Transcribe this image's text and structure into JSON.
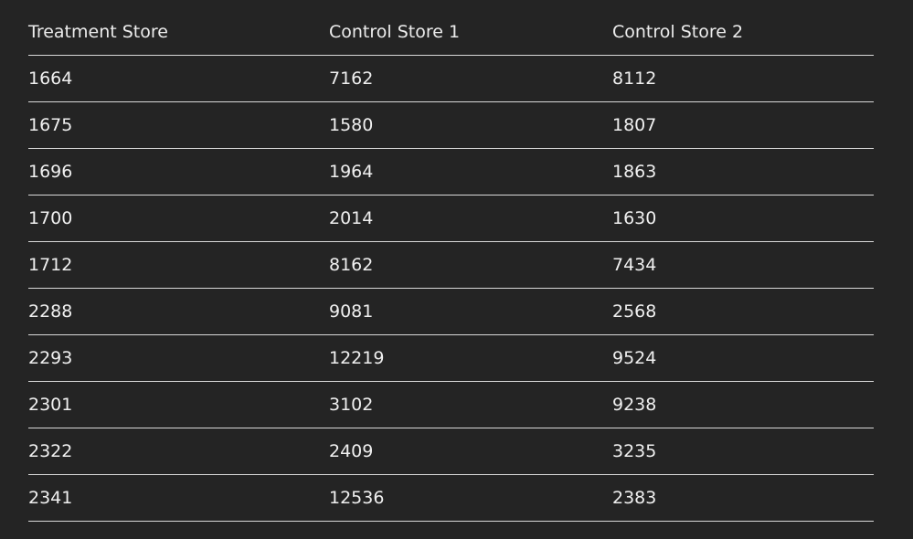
{
  "table": {
    "headers": [
      "Treatment Store",
      "Control Store 1",
      "Control Store 2"
    ],
    "rows": [
      [
        "1664",
        "7162",
        "8112"
      ],
      [
        "1675",
        "1580",
        "1807"
      ],
      [
        "1696",
        "1964",
        "1863"
      ],
      [
        "1700",
        "2014",
        "1630"
      ],
      [
        "1712",
        "8162",
        "7434"
      ],
      [
        "2288",
        "9081",
        "2568"
      ],
      [
        "2293",
        "12219",
        "9524"
      ],
      [
        "2301",
        "3102",
        "9238"
      ],
      [
        "2322",
        "2409",
        "3235"
      ],
      [
        "2341",
        "12536",
        "2383"
      ]
    ]
  }
}
